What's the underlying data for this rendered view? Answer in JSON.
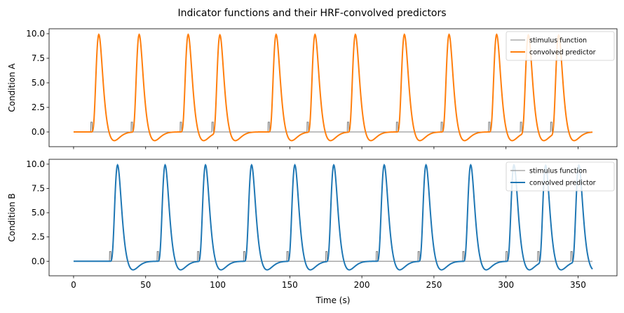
{
  "figure": {
    "title": "Indicator functions and their HRF-convolved predictors",
    "xlabel": "Time (s)"
  },
  "chart_data": [
    {
      "type": "line",
      "ylabel": "Condition A",
      "xlim": [
        -17,
        377
      ],
      "ylim": [
        -1.5,
        10.5
      ],
      "xticks": [],
      "xtick_labels": [],
      "yticks": [
        0,
        2.5,
        5,
        7.5,
        10
      ],
      "ytick_labels": [
        "0.0",
        "2.5",
        "5.0",
        "7.5",
        "10.0"
      ],
      "stimulus_onsets": [
        12,
        40,
        74,
        96,
        135,
        162,
        190,
        224,
        255,
        288,
        310,
        331
      ],
      "stimulus_duration": 1,
      "stimulus_value": 1,
      "series": [
        {
          "name": "stimulus function",
          "color": "#808080",
          "role": "stimulus"
        },
        {
          "name": "convolved predictor",
          "color": "#ff7f0e",
          "role": "predictor"
        }
      ],
      "legend": "top-right",
      "grid": false
    },
    {
      "type": "line",
      "ylabel": "Condition B",
      "xlim": [
        -17,
        377
      ],
      "ylim": [
        -1.5,
        10.5
      ],
      "xticks": [
        0,
        50,
        100,
        150,
        200,
        250,
        300,
        350
      ],
      "xtick_labels": [
        "0",
        "50",
        "100",
        "150",
        "200",
        "250",
        "300",
        "350"
      ],
      "yticks": [
        0,
        2.5,
        5,
        7.5,
        10
      ],
      "ytick_labels": [
        "0.0",
        "2.5",
        "5.0",
        "7.5",
        "10.0"
      ],
      "stimulus_onsets": [
        25,
        58,
        86,
        118,
        148,
        175,
        210,
        239,
        270,
        300,
        322,
        345
      ],
      "stimulus_duration": 1,
      "stimulus_value": 1,
      "series": [
        {
          "name": "stimulus function",
          "color": "#808080",
          "role": "stimulus"
        },
        {
          "name": "convolved predictor",
          "color": "#1f77b4",
          "role": "predictor"
        }
      ],
      "legend": "top-right",
      "grid": false
    }
  ]
}
